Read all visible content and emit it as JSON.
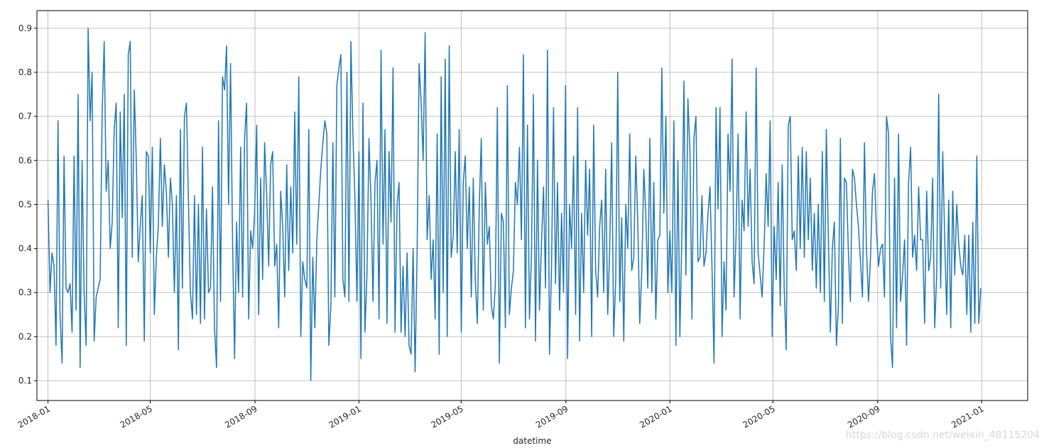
{
  "chart_data": {
    "type": "line",
    "title": "",
    "xlabel": "datetime",
    "ylabel": "",
    "x_tick_labels": [
      "2018-01",
      "2018-05",
      "2018-09",
      "2019-01",
      "2019-05",
      "2019-09",
      "2020-01",
      "2020-05",
      "2020-09",
      "2021-01"
    ],
    "y_ticks": [
      0.1,
      0.2,
      0.3,
      0.4,
      0.5,
      0.6,
      0.7,
      0.8,
      0.9
    ],
    "y_tick_labels": [
      "0.1",
      "0.2",
      "0.3",
      "0.4",
      "0.5",
      "0.6",
      "0.7",
      "0.8",
      "0.9"
    ],
    "xlim": [
      "2017-12-19",
      "2021-02-24"
    ],
    "ylim": [
      0.055,
      0.94
    ],
    "grid": true,
    "line_color": "#1f77b4",
    "x_range": [
      "2018-01-01",
      "2020-12-31"
    ],
    "approx_step_days": 1,
    "values": [
      0.51,
      0.3,
      0.39,
      0.36,
      0.18,
      0.69,
      0.25,
      0.14,
      0.61,
      0.31,
      0.3,
      0.32,
      0.21,
      0.61,
      0.26,
      0.75,
      0.13,
      0.6,
      0.3,
      0.18,
      0.9,
      0.69,
      0.8,
      0.19,
      0.29,
      0.31,
      0.33,
      0.71,
      0.87,
      0.53,
      0.6,
      0.4,
      0.46,
      0.67,
      0.73,
      0.22,
      0.71,
      0.47,
      0.75,
      0.18,
      0.84,
      0.87,
      0.38,
      0.76,
      0.6,
      0.37,
      0.45,
      0.52,
      0.19,
      0.62,
      0.61,
      0.39,
      0.63,
      0.25,
      0.38,
      0.45,
      0.65,
      0.45,
      0.59,
      0.53,
      0.38,
      0.56,
      0.5,
      0.3,
      0.52,
      0.17,
      0.67,
      0.31,
      0.7,
      0.73,
      0.51,
      0.3,
      0.24,
      0.52,
      0.25,
      0.5,
      0.23,
      0.63,
      0.24,
      0.49,
      0.3,
      0.31,
      0.54,
      0.22,
      0.13,
      0.69,
      0.28,
      0.79,
      0.76,
      0.86,
      0.5,
      0.82,
      0.41,
      0.15,
      0.46,
      0.3,
      0.63,
      0.29,
      0.65,
      0.73,
      0.24,
      0.44,
      0.4,
      0.48,
      0.68,
      0.25,
      0.56,
      0.33,
      0.64,
      0.52,
      0.36,
      0.59,
      0.62,
      0.36,
      0.41,
      0.22,
      0.53,
      0.45,
      0.29,
      0.59,
      0.35,
      0.54,
      0.39,
      0.71,
      0.41,
      0.79,
      0.2,
      0.37,
      0.33,
      0.31,
      0.67,
      0.1,
      0.38,
      0.22,
      0.42,
      0.5,
      0.58,
      0.64,
      0.69,
      0.66,
      0.18,
      0.27,
      0.64,
      0.29,
      0.77,
      0.81,
      0.84,
      0.33,
      0.29,
      0.8,
      0.28,
      0.87,
      0.66,
      0.51,
      0.28,
      0.62,
      0.15,
      0.73,
      0.21,
      0.34,
      0.65,
      0.51,
      0.28,
      0.55,
      0.6,
      0.24,
      0.85,
      0.41,
      0.67,
      0.23,
      0.62,
      0.46,
      0.81,
      0.21,
      0.5,
      0.55,
      0.21,
      0.36,
      0.2,
      0.39,
      0.18,
      0.16,
      0.4,
      0.12,
      0.39,
      0.82,
      0.73,
      0.6,
      0.89,
      0.42,
      0.52,
      0.33,
      0.42,
      0.24,
      0.66,
      0.16,
      0.79,
      0.3,
      0.83,
      0.2,
      0.86,
      0.38,
      0.43,
      0.62,
      0.39,
      0.67,
      0.21,
      0.55,
      0.61,
      0.4,
      0.54,
      0.29,
      0.56,
      0.33,
      0.23,
      0.5,
      0.65,
      0.26,
      0.55,
      0.41,
      0.45,
      0.27,
      0.24,
      0.32,
      0.72,
      0.14,
      0.48,
      0.46,
      0.22,
      0.77,
      0.25,
      0.31,
      0.35,
      0.55,
      0.5,
      0.63,
      0.42,
      0.84,
      0.22,
      0.68,
      0.24,
      0.38,
      0.75,
      0.19,
      0.6,
      0.26,
      0.41,
      0.54,
      0.31,
      0.85,
      0.16,
      0.36,
      0.72,
      0.32,
      0.55,
      0.26,
      0.48,
      0.3,
      0.77,
      0.15,
      0.5,
      0.4,
      0.61,
      0.25,
      0.72,
      0.19,
      0.48,
      0.3,
      0.6,
      0.43,
      0.58,
      0.2,
      0.68,
      0.35,
      0.29,
      0.45,
      0.51,
      0.3,
      0.58,
      0.25,
      0.4,
      0.64,
      0.2,
      0.33,
      0.8,
      0.28,
      0.47,
      0.19,
      0.5,
      0.4,
      0.66,
      0.35,
      0.38,
      0.61,
      0.46,
      0.23,
      0.35,
      0.58,
      0.48,
      0.31,
      0.65,
      0.3,
      0.55,
      0.24,
      0.42,
      0.43,
      0.81,
      0.48,
      0.7,
      0.3,
      0.44,
      0.3,
      0.69,
      0.18,
      0.6,
      0.2,
      0.44,
      0.78,
      0.34,
      0.74,
      0.62,
      0.24,
      0.65,
      0.7,
      0.37,
      0.38,
      0.52,
      0.36,
      0.39,
      0.48,
      0.54,
      0.36,
      0.14,
      0.72,
      0.49,
      0.72,
      0.2,
      0.37,
      0.26,
      0.66,
      0.53,
      0.83,
      0.29,
      0.43,
      0.66,
      0.24,
      0.51,
      0.44,
      0.71,
      0.45,
      0.58,
      0.37,
      0.32,
      0.81,
      0.39,
      0.34,
      0.29,
      0.41,
      0.57,
      0.45,
      0.69,
      0.2,
      0.45,
      0.33,
      0.55,
      0.27,
      0.59,
      0.31,
      0.17,
      0.68,
      0.7,
      0.42,
      0.44,
      0.35,
      0.61,
      0.4,
      0.63,
      0.38,
      0.62,
      0.42,
      0.56,
      0.35,
      0.48,
      0.31,
      0.5,
      0.3,
      0.62,
      0.28,
      0.67,
      0.42,
      0.21,
      0.4,
      0.46,
      0.18,
      0.27,
      0.65,
      0.23,
      0.56,
      0.55,
      0.39,
      0.28,
      0.58,
      0.56,
      0.5,
      0.45,
      0.37,
      0.29,
      0.64,
      0.4,
      0.28,
      0.38,
      0.53,
      0.57,
      0.44,
      0.36,
      0.4,
      0.41,
      0.29,
      0.7,
      0.66,
      0.2,
      0.13,
      0.56,
      0.22,
      0.66,
      0.28,
      0.34,
      0.42,
      0.18,
      0.55,
      0.63,
      0.38,
      0.43,
      0.35,
      0.54,
      0.42,
      0.42,
      0.23,
      0.53,
      0.35,
      0.38,
      0.56,
      0.22,
      0.34,
      0.75,
      0.31,
      0.62,
      0.42,
      0.25,
      0.51,
      0.22,
      0.53,
      0.34,
      0.5,
      0.41,
      0.36,
      0.34,
      0.43,
      0.25,
      0.43,
      0.21,
      0.46,
      0.23,
      0.61,
      0.23,
      0.31
    ]
  },
  "watermark": "https://blog.csdn.net/weixin_48115204"
}
